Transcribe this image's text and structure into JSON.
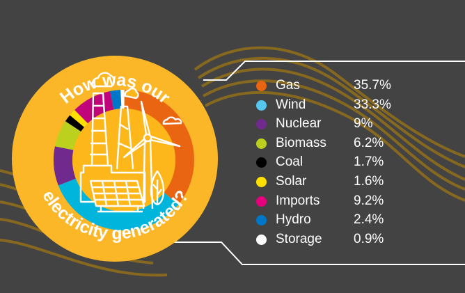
{
  "title": {
    "top": "How was our",
    "bottom": "electricity generated?"
  },
  "colors": {
    "background": "#434343",
    "badge": "#FBB728",
    "inner": "#FDB71A",
    "wave": "#8A6A1E",
    "outline": "#FFFFFF"
  },
  "legend": [
    {
      "label": "Gas",
      "value": "35.7%",
      "color": "#EA6511"
    },
    {
      "label": "Wind",
      "value": "33.3%",
      "color": "#56C8F0"
    },
    {
      "label": "Nuclear",
      "value": "9%",
      "color": "#702A8E"
    },
    {
      "label": "Biomass",
      "value": "6.2%",
      "color": "#BCD11E"
    },
    {
      "label": "Coal",
      "value": "1.7%",
      "color": "#000000"
    },
    {
      "label": "Solar",
      "value": "1.6%",
      "color": "#FFE000"
    },
    {
      "label": "Imports",
      "value": "9.2%",
      "color": "#E5007E"
    },
    {
      "label": "Hydro",
      "value": "2.4%",
      "color": "#0076C8"
    },
    {
      "label": "Storage",
      "value": "0.9%",
      "color": "#FFFFFF"
    }
  ],
  "chart_data": {
    "type": "pie",
    "title": "How was our electricity generated?",
    "categories": [
      "Gas",
      "Wind",
      "Nuclear",
      "Biomass",
      "Coal",
      "Solar",
      "Imports",
      "Hydro",
      "Storage"
    ],
    "values": [
      35.7,
      33.3,
      9,
      6.2,
      1.7,
      1.6,
      9.2,
      2.4,
      0.9
    ],
    "unit": "%",
    "colors": [
      "#EA6511",
      "#00B5DB",
      "#702A8E",
      "#BCD11E",
      "#000000",
      "#FFE000",
      "#C0047A",
      "#0076C8",
      "#FFFFFF"
    ],
    "donut": true,
    "legend_position": "right",
    "ring_order_clockwise_from_top": [
      "Storage",
      "Gas",
      "Wind",
      "Nuclear",
      "Biomass",
      "Coal",
      "Solar",
      "Imports",
      "Hydro"
    ]
  }
}
